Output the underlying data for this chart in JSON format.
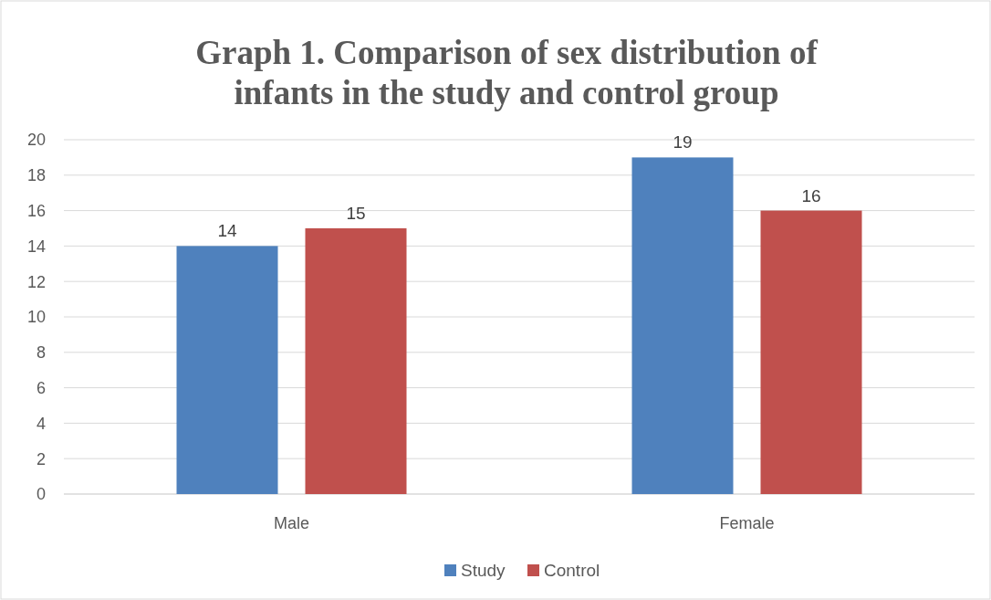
{
  "chart_data": {
    "type": "bar",
    "title": "Graph 1. Comparison of sex distribution of infants in the study and control group",
    "categories": [
      "Male",
      "Female"
    ],
    "series": [
      {
        "name": "Study",
        "color": "#4f81bd",
        "values": [
          14,
          19
        ]
      },
      {
        "name": "Control",
        "color": "#c0504d",
        "values": [
          15,
          16
        ]
      }
    ],
    "ylim": [
      0,
      20
    ],
    "yticks": [
      0,
      2,
      4,
      6,
      8,
      10,
      12,
      14,
      16,
      18,
      20
    ],
    "grid": "y",
    "legend": "bottom",
    "data_labels": true
  }
}
